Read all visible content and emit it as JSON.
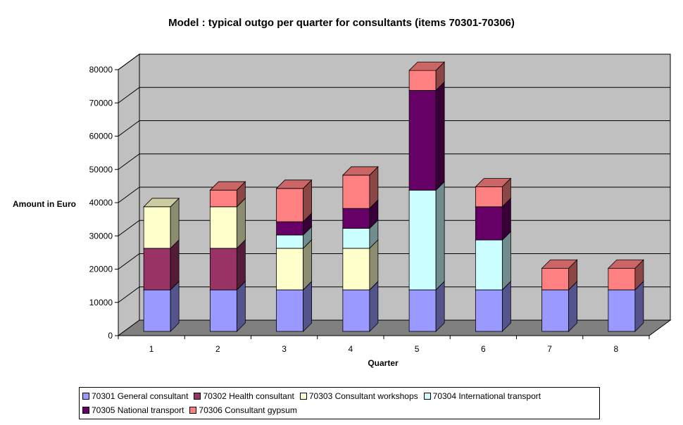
{
  "chart_data": {
    "type": "bar",
    "stacked": true,
    "three_d": true,
    "title": "Model : typical outgo per quarter for consultants (items 70301-70306)",
    "xlabel": "Quarter",
    "ylabel": "Amount in Euro",
    "categories": [
      "1",
      "2",
      "3",
      "4",
      "5",
      "6",
      "7",
      "8"
    ],
    "ylim": [
      0,
      80000
    ],
    "yticks": [
      "0",
      "10000",
      "20000",
      "30000",
      "40000",
      "50000",
      "60000",
      "70000",
      "80000"
    ],
    "grid": true,
    "legend_position": "bottom",
    "series": [
      {
        "name": "70301 General consultant",
        "color": "#9999ff",
        "values": [
          12500,
          12500,
          12500,
          12500,
          12500,
          12500,
          12500,
          12500
        ]
      },
      {
        "name": "70302 Health consultant",
        "color": "#993366",
        "values": [
          12500,
          12500,
          0,
          0,
          0,
          0,
          0,
          0
        ]
      },
      {
        "name": "70303 Consultant workshops",
        "color": "#ffffcc",
        "values": [
          12500,
          12500,
          12500,
          12500,
          0,
          0,
          0,
          0
        ]
      },
      {
        "name": "70304 International transport",
        "color": "#ccffff",
        "values": [
          0,
          0,
          4000,
          6000,
          30000,
          15000,
          0,
          0
        ]
      },
      {
        "name": "70305 National transport",
        "color": "#660066",
        "values": [
          0,
          0,
          4000,
          6000,
          30000,
          10000,
          0,
          0
        ]
      },
      {
        "name": "70306 Consultant gypsum",
        "color": "#ff8080",
        "values": [
          0,
          5000,
          10000,
          10000,
          6000,
          6000,
          6500,
          6500
        ]
      }
    ],
    "colors": {
      "wall": "#c0c0c0",
      "floor": "#808080",
      "gridline": "#000000"
    }
  }
}
